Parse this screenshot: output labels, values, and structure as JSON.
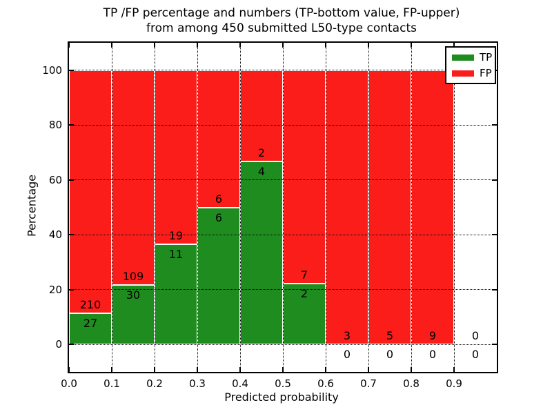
{
  "figure": {
    "title_line1": "TP /FP percentage and numbers (TP-bottom value, FP-upper)",
    "title_line2": "from among 450 submitted L50-type contacts",
    "xlabel": "Predicted probability",
    "ylabel": "Percentage"
  },
  "legend": {
    "position": "upper right",
    "items": [
      {
        "label": "TP",
        "color": "#1E8C1E"
      },
      {
        "label": "FP",
        "color": "#FA1D1A"
      }
    ]
  },
  "chart_data": {
    "type": "bar",
    "stacked": true,
    "title": "TP /FP percentage and numbers (TP-bottom value, FP-upper) from among 450 submitted L50-type contacts",
    "xlabel": "Predicted probability",
    "ylabel": "Percentage",
    "total_contacts": 450,
    "bin_width": 0.1,
    "x_bins": [
      0.0,
      0.1,
      0.2,
      0.3,
      0.4,
      0.5,
      0.6,
      0.7,
      0.8,
      0.9
    ],
    "series": [
      {
        "name": "TP",
        "color": "#1E8C1E",
        "counts": [
          27,
          30,
          11,
          6,
          4,
          2,
          0,
          0,
          0,
          0
        ]
      },
      {
        "name": "FP",
        "color": "#FA1D1A",
        "counts": [
          210,
          109,
          19,
          6,
          2,
          7,
          3,
          5,
          9,
          0
        ]
      }
    ],
    "tp_percent": [
      11.39,
      21.58,
      36.67,
      50.0,
      66.67,
      22.22,
      0.0,
      0.0,
      0.0,
      0.0
    ],
    "fp_percent": [
      88.61,
      78.42,
      63.33,
      50.0,
      33.33,
      77.78,
      100.0,
      100.0,
      100.0,
      0.0
    ],
    "x_tick_values": [
      0.0,
      0.1,
      0.2,
      0.3,
      0.4,
      0.5,
      0.6,
      0.7,
      0.8,
      0.9
    ],
    "x_tick_labels": [
      "0.0",
      "0.1",
      "0.2",
      "0.3",
      "0.4",
      "0.5",
      "0.6",
      "0.7",
      "0.8",
      "0.9"
    ],
    "y_tick_values": [
      0,
      20,
      40,
      60,
      80,
      100
    ],
    "y_tick_labels": [
      "0",
      "20",
      "40",
      "60",
      "80",
      "100"
    ],
    "xlim": [
      0.0,
      1.0
    ],
    "ylim": [
      -10,
      110
    ],
    "grid": true,
    "grid_style": "dotted",
    "bar_edge_color": "#ffffff"
  }
}
